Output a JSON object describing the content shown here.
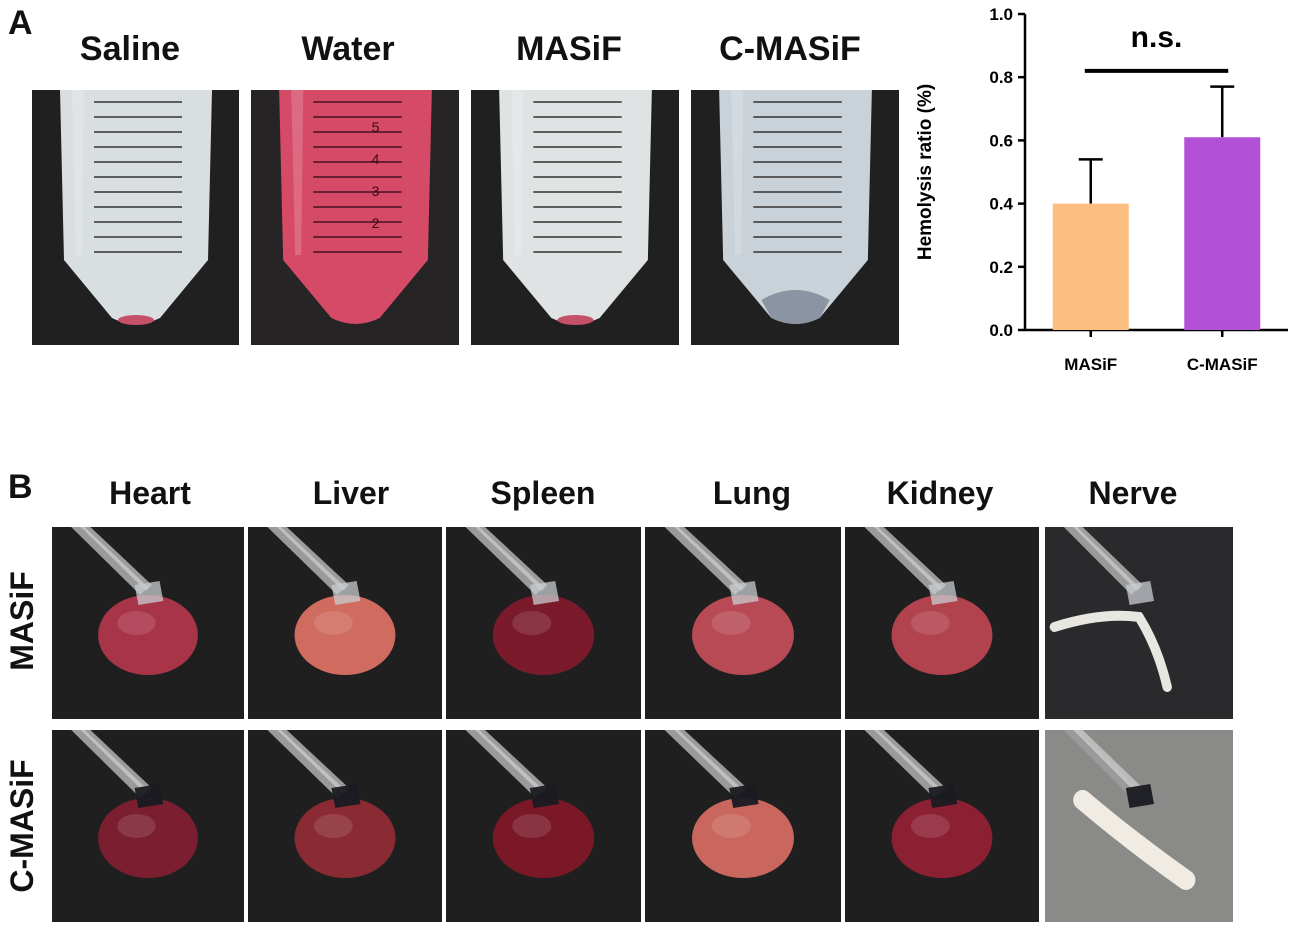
{
  "panel_a": {
    "letter": "A",
    "tubes": [
      {
        "label": "Saline",
        "liquid": "#d9dee0"
      },
      {
        "label": "Water",
        "liquid": "#d54a66"
      },
      {
        "label": "MASiF",
        "liquid": "#dfe3e3"
      },
      {
        "label": "C-MASiF",
        "liquid": "#c9d2d8"
      }
    ],
    "tube_marks": [
      "5",
      "4",
      "3",
      "2"
    ]
  },
  "panel_b": {
    "letter": "B",
    "organs": [
      "Heart",
      "Liver",
      "Spleen",
      "Lung",
      "Kidney",
      "Nerve"
    ],
    "rows": [
      "MASiF",
      "C-MASiF"
    ]
  },
  "chart_data": {
    "type": "bar",
    "categories": [
      "MASiF",
      "C-MASiF"
    ],
    "values": [
      0.4,
      0.61
    ],
    "errors": [
      0.14,
      0.16
    ],
    "colors": [
      "#fdbf7f",
      "#b350d8"
    ],
    "ylabel": "Hemolysis ratio (%)",
    "ylim": [
      0,
      1.0
    ],
    "yticks": [
      "0.0",
      "0.2",
      "0.4",
      "0.6",
      "0.8",
      "1.0"
    ],
    "annotation": "n.s.",
    "grid": false
  }
}
